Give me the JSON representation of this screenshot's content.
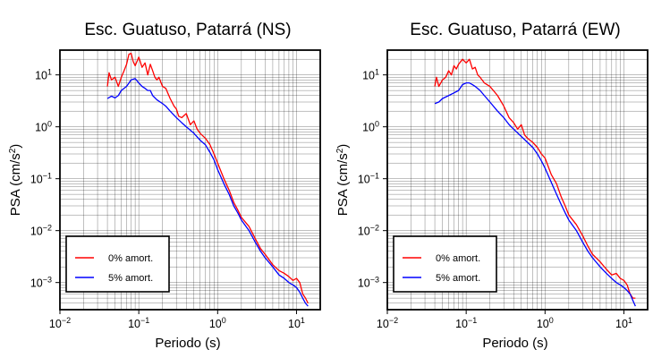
{
  "chart_data": [
    {
      "type": "line",
      "title": "Esc. Guatuso, Patarrá (NS)",
      "xlabel": "Periodo (s)",
      "ylabel": "PSA (cm/s²)",
      "x_scale": "log",
      "y_scale": "log",
      "xlim": [
        0.01,
        20
      ],
      "ylim": [
        0.0003,
        30
      ],
      "x_ticks": [
        {
          "value": 0.01,
          "base": "10",
          "exp": "−2"
        },
        {
          "value": 0.1,
          "base": "10",
          "exp": "−1"
        },
        {
          "value": 1,
          "base": "10",
          "exp": "0"
        },
        {
          "value": 10,
          "base": "10",
          "exp": "1"
        }
      ],
      "y_ticks": [
        {
          "value": 0.001,
          "base": "10",
          "exp": "−3"
        },
        {
          "value": 0.01,
          "base": "10",
          "exp": "−2"
        },
        {
          "value": 0.1,
          "base": "10",
          "exp": "−1"
        },
        {
          "value": 1,
          "base": "10",
          "exp": "0"
        },
        {
          "value": 10,
          "base": "10",
          "exp": "1"
        }
      ],
      "grid": true,
      "legend_position": "bottom-left",
      "series": [
        {
          "name": "0% amort.",
          "color": "#ff0000",
          "points": [
            [
              0.04,
              6
            ],
            [
              0.042,
              11
            ],
            [
              0.045,
              8
            ],
            [
              0.05,
              9
            ],
            [
              0.055,
              6
            ],
            [
              0.06,
              9
            ],
            [
              0.065,
              12
            ],
            [
              0.07,
              16
            ],
            [
              0.075,
              25
            ],
            [
              0.08,
              26
            ],
            [
              0.085,
              18
            ],
            [
              0.09,
              15
            ],
            [
              0.1,
              22
            ],
            [
              0.11,
              14
            ],
            [
              0.12,
              17
            ],
            [
              0.13,
              10
            ],
            [
              0.14,
              16
            ],
            [
              0.15,
              12
            ],
            [
              0.16,
              9
            ],
            [
              0.17,
              8
            ],
            [
              0.18,
              9
            ],
            [
              0.2,
              6
            ],
            [
              0.22,
              5.5
            ],
            [
              0.25,
              3.5
            ],
            [
              0.28,
              2.5
            ],
            [
              0.3,
              2.2
            ],
            [
              0.32,
              1.6
            ],
            [
              0.35,
              1.5
            ],
            [
              0.4,
              1.8
            ],
            [
              0.45,
              1.1
            ],
            [
              0.5,
              1.3
            ],
            [
              0.55,
              0.9
            ],
            [
              0.6,
              0.75
            ],
            [
              0.7,
              0.6
            ],
            [
              0.8,
              0.45
            ],
            [
              0.9,
              0.3
            ],
            [
              1,
              0.2
            ],
            [
              1.2,
              0.1
            ],
            [
              1.4,
              0.06
            ],
            [
              1.6,
              0.035
            ],
            [
              1.8,
              0.025
            ],
            [
              2,
              0.018
            ],
            [
              2.5,
              0.012
            ],
            [
              3,
              0.007
            ],
            [
              3.5,
              0.0045
            ],
            [
              4,
              0.0035
            ],
            [
              5,
              0.0022
            ],
            [
              6,
              0.0017
            ],
            [
              7,
              0.0015
            ],
            [
              8,
              0.0013
            ],
            [
              9,
              0.0011
            ],
            [
              10,
              0.0012
            ],
            [
              11,
              0.001
            ],
            [
              12,
              0.0006
            ],
            [
              13,
              0.0005
            ],
            [
              14,
              0.0004
            ]
          ]
        },
        {
          "name": "5% amort.",
          "color": "#0000ff",
          "points": [
            [
              0.04,
              3.5
            ],
            [
              0.045,
              3.9
            ],
            [
              0.05,
              3.6
            ],
            [
              0.055,
              4
            ],
            [
              0.06,
              5
            ],
            [
              0.07,
              6
            ],
            [
              0.08,
              8
            ],
            [
              0.09,
              8.5
            ],
            [
              0.1,
              7
            ],
            [
              0.11,
              6
            ],
            [
              0.12,
              5.5
            ],
            [
              0.13,
              5
            ],
            [
              0.14,
              5
            ],
            [
              0.15,
              4
            ],
            [
              0.17,
              3.3
            ],
            [
              0.2,
              2.8
            ],
            [
              0.22,
              2.5
            ],
            [
              0.25,
              2
            ],
            [
              0.3,
              1.5
            ],
            [
              0.35,
              1.2
            ],
            [
              0.4,
              1
            ],
            [
              0.5,
              0.75
            ],
            [
              0.6,
              0.55
            ],
            [
              0.7,
              0.45
            ],
            [
              0.8,
              0.32
            ],
            [
              0.9,
              0.23
            ],
            [
              1,
              0.15
            ],
            [
              1.2,
              0.08
            ],
            [
              1.4,
              0.05
            ],
            [
              1.6,
              0.03
            ],
            [
              1.8,
              0.022
            ],
            [
              2,
              0.016
            ],
            [
              2.5,
              0.01
            ],
            [
              3,
              0.006
            ],
            [
              3.5,
              0.004
            ],
            [
              4,
              0.003
            ],
            [
              5,
              0.002
            ],
            [
              6,
              0.0014
            ],
            [
              7,
              0.0012
            ],
            [
              8,
              0.001
            ],
            [
              9,
              0.0009
            ],
            [
              10,
              0.0008
            ],
            [
              11,
              0.00065
            ],
            [
              12,
              0.0005
            ],
            [
              13,
              0.0004
            ],
            [
              14,
              0.00035
            ]
          ]
        }
      ]
    },
    {
      "type": "line",
      "title": "Esc. Guatuso, Patarrá (EW)",
      "xlabel": "Periodo (s)",
      "ylabel": "PSA (cm/s²)",
      "x_scale": "log",
      "y_scale": "log",
      "xlim": [
        0.01,
        20
      ],
      "ylim": [
        0.0003,
        30
      ],
      "x_ticks": [
        {
          "value": 0.01,
          "base": "10",
          "exp": "−2"
        },
        {
          "value": 0.1,
          "base": "10",
          "exp": "−1"
        },
        {
          "value": 1,
          "base": "10",
          "exp": "0"
        },
        {
          "value": 10,
          "base": "10",
          "exp": "1"
        }
      ],
      "y_ticks": [
        {
          "value": 0.001,
          "base": "10",
          "exp": "−3"
        },
        {
          "value": 0.01,
          "base": "10",
          "exp": "−2"
        },
        {
          "value": 0.1,
          "base": "10",
          "exp": "−1"
        },
        {
          "value": 1,
          "base": "10",
          "exp": "0"
        },
        {
          "value": 10,
          "base": "10",
          "exp": "1"
        }
      ],
      "grid": true,
      "legend_position": "bottom-left",
      "series": [
        {
          "name": "0% amort.",
          "color": "#ff0000",
          "points": [
            [
              0.04,
              6
            ],
            [
              0.042,
              9
            ],
            [
              0.045,
              6
            ],
            [
              0.05,
              8
            ],
            [
              0.055,
              9
            ],
            [
              0.06,
              12
            ],
            [
              0.065,
              10
            ],
            [
              0.07,
              15
            ],
            [
              0.075,
              13
            ],
            [
              0.08,
              16
            ],
            [
              0.09,
              20
            ],
            [
              0.1,
              17
            ],
            [
              0.11,
              20
            ],
            [
              0.12,
              13
            ],
            [
              0.13,
              14
            ],
            [
              0.14,
              10
            ],
            [
              0.15,
              9
            ],
            [
              0.17,
              7
            ],
            [
              0.2,
              6
            ],
            [
              0.25,
              4
            ],
            [
              0.3,
              2.5
            ],
            [
              0.35,
              1.5
            ],
            [
              0.4,
              1.2
            ],
            [
              0.45,
              0.9
            ],
            [
              0.5,
              1.1
            ],
            [
              0.55,
              0.7
            ],
            [
              0.6,
              0.6
            ],
            [
              0.7,
              0.5
            ],
            [
              0.8,
              0.4
            ],
            [
              0.9,
              0.3
            ],
            [
              1,
              0.25
            ],
            [
              1.2,
              0.12
            ],
            [
              1.4,
              0.08
            ],
            [
              1.6,
              0.045
            ],
            [
              1.8,
              0.03
            ],
            [
              2,
              0.02
            ],
            [
              2.5,
              0.013
            ],
            [
              3,
              0.008
            ],
            [
              3.5,
              0.005
            ],
            [
              4,
              0.0035
            ],
            [
              5,
              0.0025
            ],
            [
              6,
              0.0018
            ],
            [
              7,
              0.0014
            ],
            [
              8,
              0.0015
            ],
            [
              9,
              0.0012
            ],
            [
              10,
              0.0011
            ],
            [
              11,
              0.0009
            ],
            [
              12,
              0.0006
            ],
            [
              13,
              0.0005
            ],
            [
              14,
              0.0005
            ]
          ]
        },
        {
          "name": "5% amort.",
          "color": "#0000ff",
          "points": [
            [
              0.04,
              2.8
            ],
            [
              0.045,
              3
            ],
            [
              0.05,
              3.5
            ],
            [
              0.06,
              4
            ],
            [
              0.07,
              4.5
            ],
            [
              0.08,
              5
            ],
            [
              0.09,
              6.5
            ],
            [
              0.1,
              7
            ],
            [
              0.11,
              7
            ],
            [
              0.12,
              6.5
            ],
            [
              0.13,
              6
            ],
            [
              0.15,
              5
            ],
            [
              0.17,
              4
            ],
            [
              0.2,
              3
            ],
            [
              0.25,
              2
            ],
            [
              0.3,
              1.5
            ],
            [
              0.35,
              1.1
            ],
            [
              0.4,
              0.9
            ],
            [
              0.5,
              0.65
            ],
            [
              0.6,
              0.5
            ],
            [
              0.7,
              0.4
            ],
            [
              0.8,
              0.3
            ],
            [
              0.9,
              0.22
            ],
            [
              1,
              0.16
            ],
            [
              1.2,
              0.085
            ],
            [
              1.4,
              0.05
            ],
            [
              1.6,
              0.032
            ],
            [
              1.8,
              0.022
            ],
            [
              2,
              0.016
            ],
            [
              2.5,
              0.01
            ],
            [
              3,
              0.006
            ],
            [
              3.5,
              0.004
            ],
            [
              4,
              0.003
            ],
            [
              5,
              0.002
            ],
            [
              6,
              0.0015
            ],
            [
              7,
              0.0012
            ],
            [
              8,
              0.001
            ],
            [
              9,
              0.0009
            ],
            [
              10,
              0.0008
            ],
            [
              11,
              0.0007
            ],
            [
              12,
              0.0006
            ],
            [
              13,
              0.00045
            ],
            [
              14,
              0.00035
            ]
          ]
        }
      ]
    }
  ]
}
